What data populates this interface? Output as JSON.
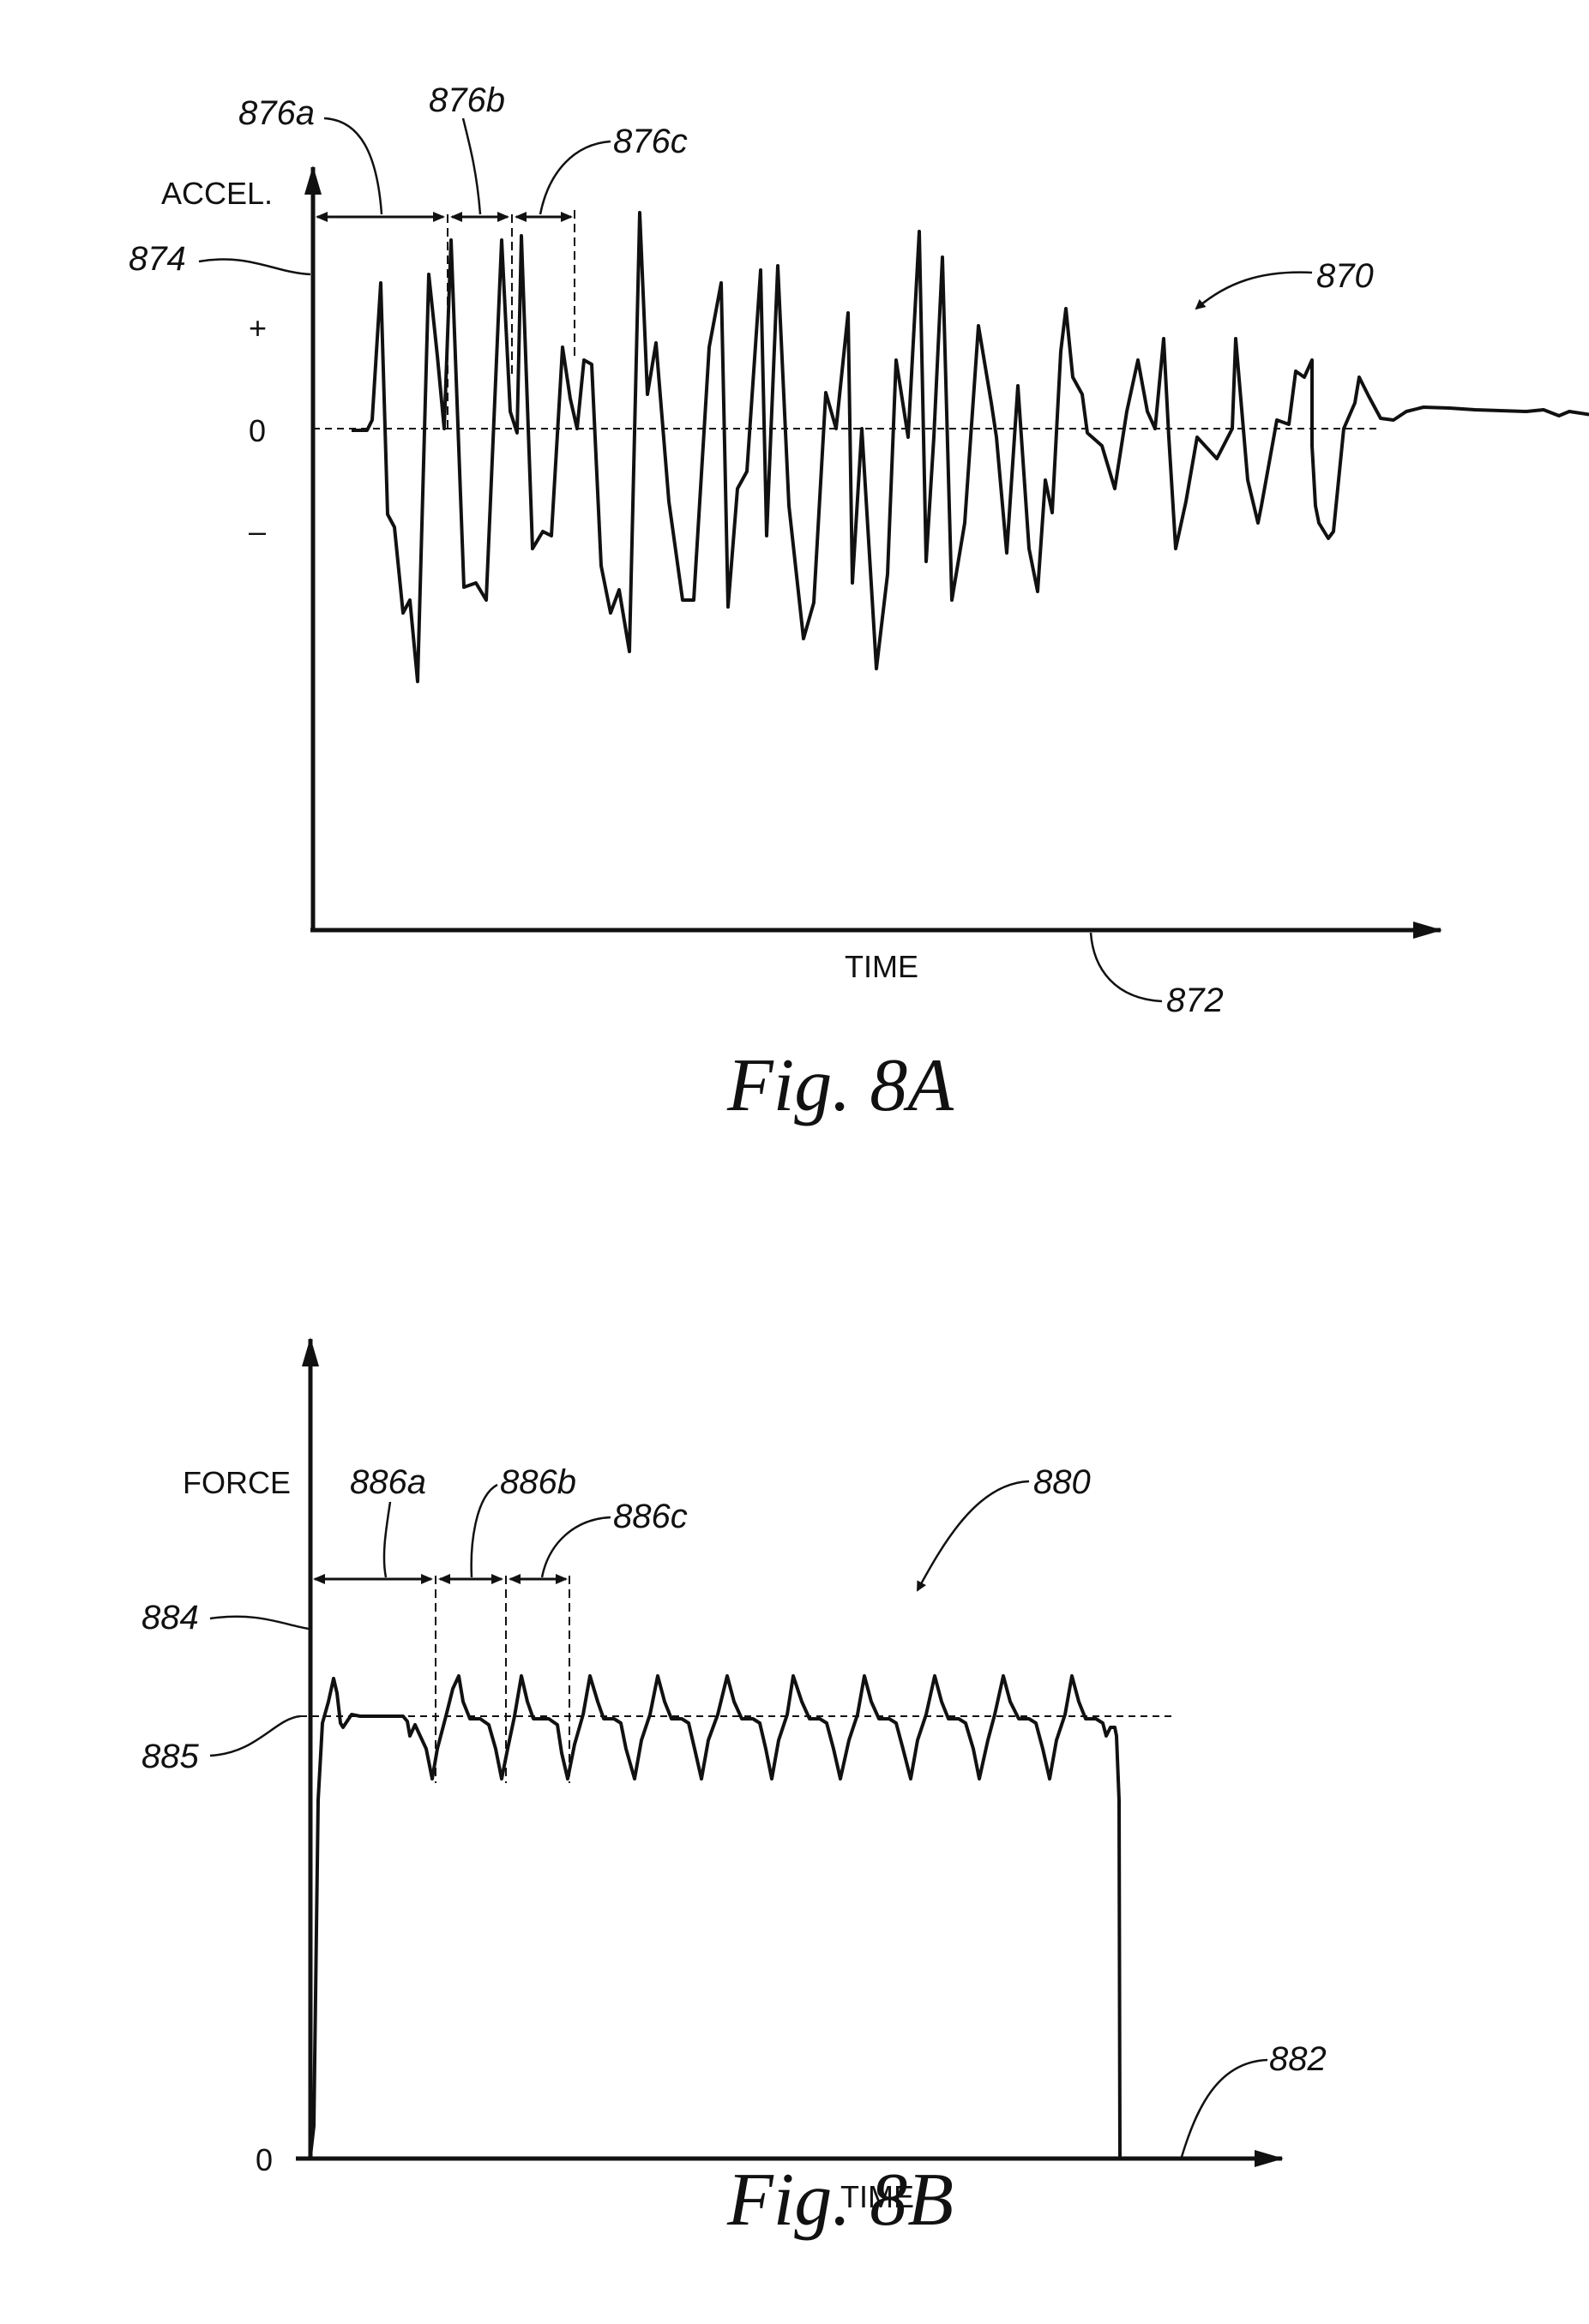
{
  "figure_8a": {
    "caption": "Fig. 8A",
    "y_axis_label": "ACCEL.",
    "x_axis_label": "TIME",
    "tick_plus": "+",
    "tick_zero": "0",
    "tick_minus": "–",
    "refs": {
      "graph": "870",
      "x_axis": "872",
      "y_axis": "874",
      "interval_a": "876a",
      "interval_b": "876b",
      "interval_c": "876c"
    }
  },
  "figure_8b": {
    "caption": "Fig. 8B",
    "y_axis_label": "FORCE",
    "x_axis_label": "TIME",
    "tick_zero": "0",
    "refs": {
      "graph": "880",
      "x_axis": "882",
      "y_axis": "884",
      "reference_level": "885",
      "interval_a": "886a",
      "interval_b": "886b",
      "interval_c": "886c"
    }
  },
  "colors": {
    "ink": "#111111",
    "paper": "#ffffff"
  }
}
